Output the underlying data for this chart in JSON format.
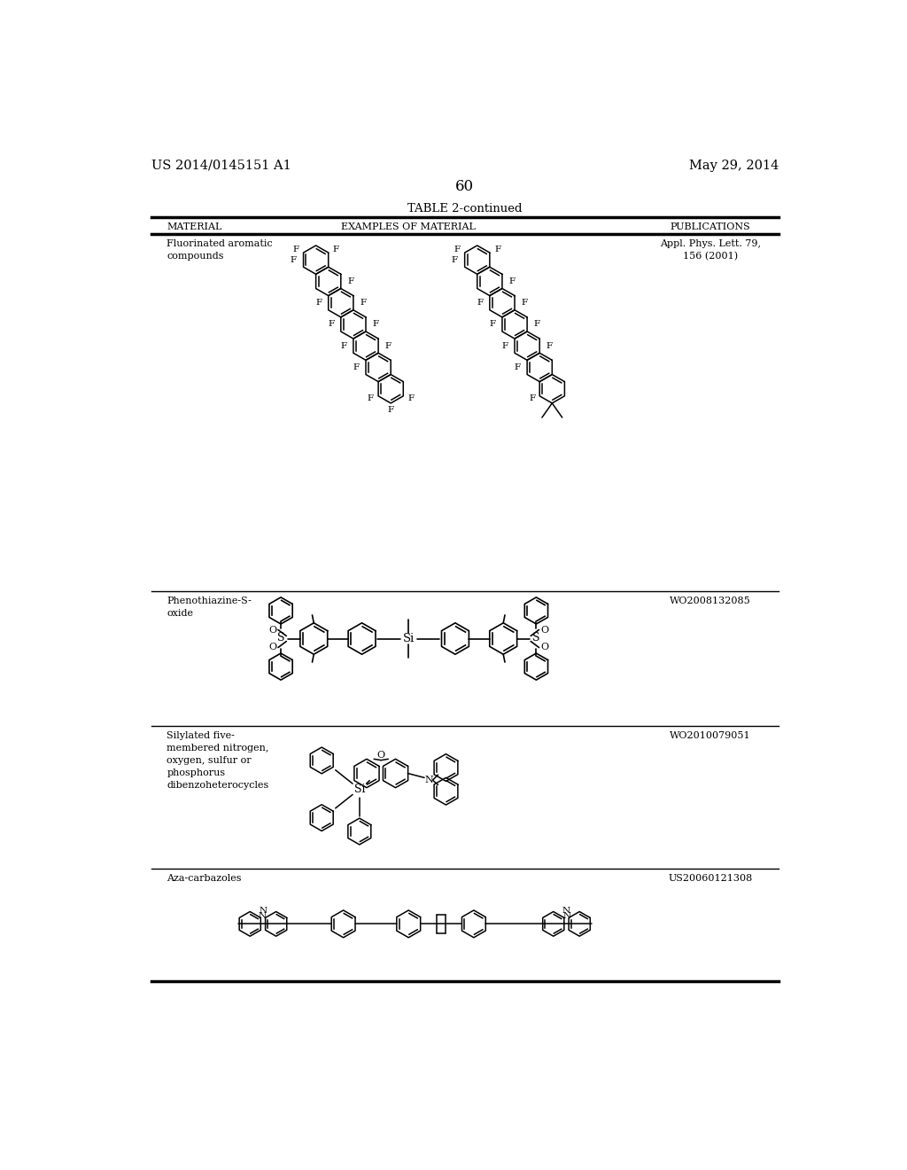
{
  "page_number": "60",
  "left_header": "US 2014/0145151 A1",
  "right_header": "May 29, 2014",
  "table_title": "TABLE 2-continued",
  "col_headers": [
    "MATERIAL",
    "EXAMPLES OF MATERIAL",
    "PUBLICATIONS"
  ],
  "background_color": "#ffffff",
  "text_color": "#000000",
  "rows": [
    {
      "material": "Fluorinated aromatic\ncompounds",
      "publication": "Appl. Phys. Lett. 79,\n156 (2001)"
    },
    {
      "material": "Phenothiazine-S-\noxide",
      "publication": "WO2008132085"
    },
    {
      "material": "Silylated five-\nmembered nitrogen,\noxygen, sulfur or\nphosphorus\ndibenzoheterocycles",
      "publication": "WO2010079051"
    },
    {
      "material": "Aza-carbazoles",
      "publication": "US20060121308"
    }
  ]
}
